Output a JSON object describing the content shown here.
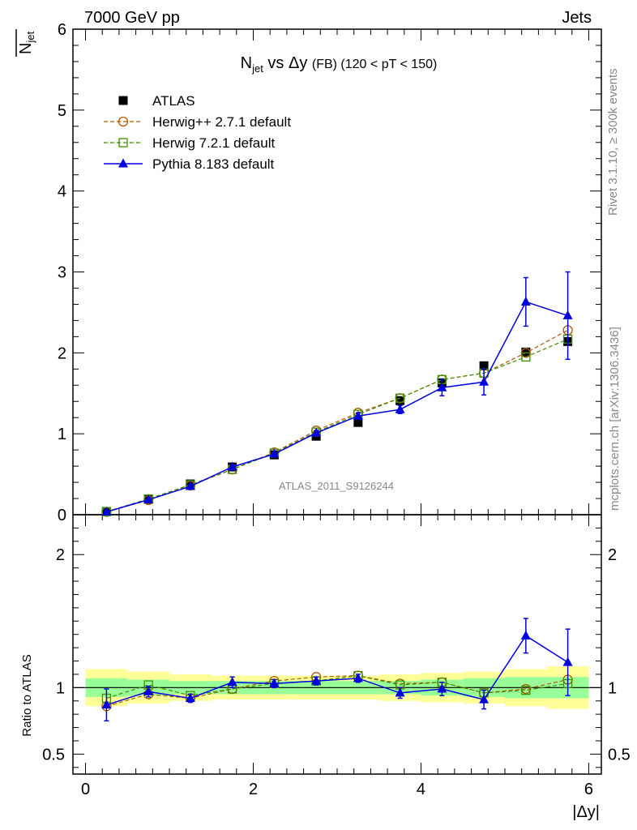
{
  "header": {
    "left": "7000 GeV pp",
    "right": "Jets"
  },
  "side_text": {
    "rivet": "Rivet 3.1.10, ≥ 300k events",
    "mcplots": "mcplots.cern.ch [arXiv:1306.3436]"
  },
  "watermark": "ATLAS_2011_S9126244",
  "colors": {
    "atlas": "#000000",
    "herwigpp": "#b35900",
    "herwig7": "#3f8f00",
    "pythia": "#0000e0",
    "band_inner": "#99ff99",
    "band_outer": "#ffff99"
  },
  "chart_data": [
    {
      "type": "scatter",
      "panel": "main",
      "title": {
        "n": "N",
        "sub": "jet",
        "rest": " vs Δy ",
        "fb": "(FB)",
        "range": " (120 < pT < 150)"
      },
      "ylabel": {
        "top": "N",
        "sub": "jet"
      },
      "xlim": [
        -0.15,
        6.15
      ],
      "ylim": [
        0,
        6
      ],
      "yticks": [
        0,
        1,
        2,
        3,
        4,
        5,
        6
      ],
      "ytick_labels": [
        "0",
        "1",
        "2",
        "3",
        "4",
        "5",
        "6"
      ],
      "x": [
        0.25,
        0.75,
        1.25,
        1.75,
        2.25,
        2.75,
        3.25,
        3.75,
        4.25,
        4.75,
        5.25,
        5.75
      ],
      "series": [
        {
          "name": "ATLAS",
          "key": "atlas",
          "marker": "square",
          "line": "none",
          "values": [
            0.04,
            0.19,
            0.38,
            0.59,
            0.74,
            0.97,
            1.14,
            1.41,
            1.63,
            1.84,
            2.01,
            2.14
          ]
        },
        {
          "name": "Herwig++ 2.7.1 default",
          "key": "herwigpp",
          "marker": "open-circle",
          "line": "dashed",
          "values": [
            0.035,
            0.18,
            0.36,
            0.56,
            0.77,
            1.04,
            1.26,
            1.44,
            1.67,
            1.75,
            2.0,
            2.28
          ]
        },
        {
          "name": "Herwig 7.2.1 default",
          "key": "herwig7",
          "marker": "open-square",
          "line": "dashed",
          "values": [
            0.037,
            0.195,
            0.37,
            0.56,
            0.76,
            1.02,
            1.24,
            1.44,
            1.67,
            1.75,
            1.95,
            2.17
          ]
        },
        {
          "name": "Pythia 8.183 default",
          "key": "pythia",
          "marker": "triangle",
          "line": "solid",
          "values": [
            0.035,
            0.185,
            0.35,
            0.59,
            0.75,
            1.01,
            1.22,
            1.3,
            1.57,
            1.64,
            2.63,
            2.46
          ],
          "errors": [
            0.005,
            0.01,
            0.015,
            0.02,
            0.02,
            0.03,
            0.04,
            0.05,
            0.1,
            0.16,
            0.3,
            0.54
          ]
        }
      ]
    },
    {
      "type": "scatter",
      "panel": "ratio",
      "ylabel": "Ratio to ATLAS",
      "xlabel": "|Δy|",
      "xlim": [
        -0.15,
        6.15
      ],
      "ylim": [
        0.35,
        2.3
      ],
      "xticks": [
        0,
        2,
        4,
        6
      ],
      "xtick_labels": [
        "0",
        "2",
        "4",
        "6"
      ],
      "yticks": [
        0.5,
        1,
        2
      ],
      "ytick_labels": [
        "0.5",
        "1",
        "2"
      ],
      "x": [
        0.25,
        0.75,
        1.25,
        1.75,
        2.25,
        2.75,
        3.25,
        3.75,
        4.25,
        4.75,
        5.25,
        5.75
      ],
      "band_edges": [
        0,
        0.5,
        1.0,
        1.5,
        2.0,
        2.5,
        3.0,
        3.5,
        4.0,
        4.5,
        5.0,
        5.5,
        6.0
      ],
      "band_inner": [
        [
          0.93,
          1.07
        ],
        [
          0.94,
          1.06
        ],
        [
          0.95,
          1.05
        ],
        [
          0.95,
          1.05
        ],
        [
          0.95,
          1.05
        ],
        [
          0.95,
          1.05
        ],
        [
          0.95,
          1.05
        ],
        [
          0.95,
          1.05
        ],
        [
          0.94,
          1.06
        ],
        [
          0.93,
          1.07
        ],
        [
          0.92,
          1.08
        ],
        [
          0.92,
          1.08
        ]
      ],
      "band_outer": [
        [
          0.86,
          1.14
        ],
        [
          0.88,
          1.12
        ],
        [
          0.9,
          1.1
        ],
        [
          0.91,
          1.09
        ],
        [
          0.91,
          1.09
        ],
        [
          0.91,
          1.09
        ],
        [
          0.91,
          1.09
        ],
        [
          0.9,
          1.1
        ],
        [
          0.89,
          1.11
        ],
        [
          0.88,
          1.12
        ],
        [
          0.86,
          1.14
        ],
        [
          0.84,
          1.16
        ]
      ],
      "series": [
        {
          "name": "Herwig++ 2.7.1 default",
          "key": "herwigpp",
          "marker": "open-circle",
          "line": "dashed",
          "values": [
            0.86,
            0.95,
            0.92,
            0.99,
            1.05,
            1.08,
            1.09,
            1.03,
            1.04,
            0.96,
            0.99,
            1.06
          ]
        },
        {
          "name": "Herwig 7.2.1 default",
          "key": "herwig7",
          "marker": "open-square",
          "line": "dashed",
          "values": [
            0.92,
            1.02,
            0.94,
            0.99,
            1.03,
            1.05,
            1.09,
            1.02,
            1.04,
            0.96,
            0.98,
            1.03
          ]
        },
        {
          "name": "Pythia 8.183 default",
          "key": "pythia",
          "marker": "triangle",
          "line": "solid",
          "values": [
            0.87,
            0.97,
            0.92,
            1.04,
            1.03,
            1.05,
            1.07,
            0.96,
            0.99,
            0.91,
            1.39,
            1.19
          ],
          "errors": [
            0.12,
            0.04,
            0.03,
            0.04,
            0.03,
            0.03,
            0.03,
            0.04,
            0.05,
            0.07,
            0.13,
            0.25
          ]
        }
      ]
    }
  ]
}
